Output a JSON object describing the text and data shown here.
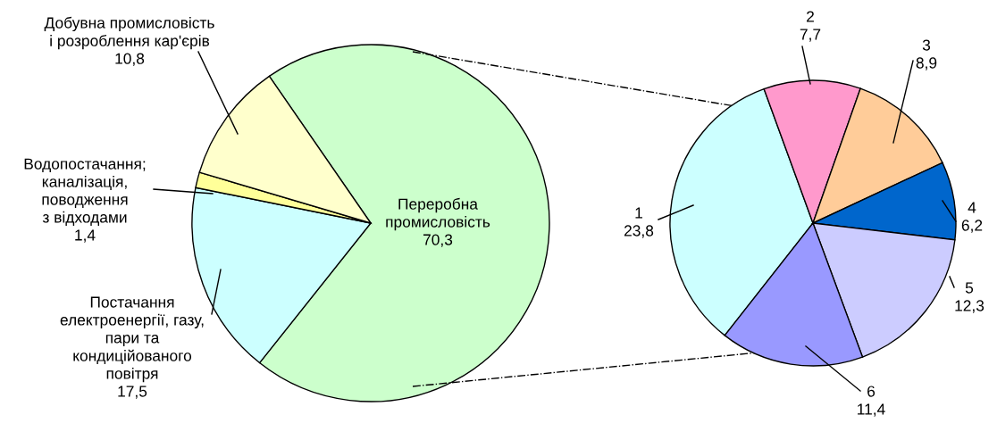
{
  "chart_data": [
    {
      "type": "pie",
      "categories": [
        "Переробна\nпромисловість",
        "Постачання\nелектроенергії, газу,\nпари та\nкондиційованого\nповітря",
        "Водопостачання;\nканалізація,\nповодження\nз відходами",
        "Добувна промисловість\nі розроблення кар'єрів"
      ],
      "values": [
        70.3,
        17.5,
        1.4,
        10.8
      ],
      "colors": [
        "#ccffcc",
        "#ccffff",
        "#ffff99",
        "#ffffcc"
      ],
      "value_labels": [
        "70,3",
        "17,5",
        "1,4",
        "10,8"
      ]
    },
    {
      "type": "pie",
      "categories": [
        "1",
        "2",
        "3",
        "4",
        "5",
        "6"
      ],
      "values": [
        23.8,
        7.7,
        8.9,
        6.2,
        12.3,
        11.4
      ],
      "colors": [
        "#ccffff",
        "#ff99cc",
        "#ffcc99",
        "#0066cc",
        "#ccccff",
        "#9999ff"
      ],
      "value_labels": [
        "23,8",
        "7,7",
        "8,9",
        "6,2",
        "12,3",
        "11,4"
      ]
    }
  ]
}
